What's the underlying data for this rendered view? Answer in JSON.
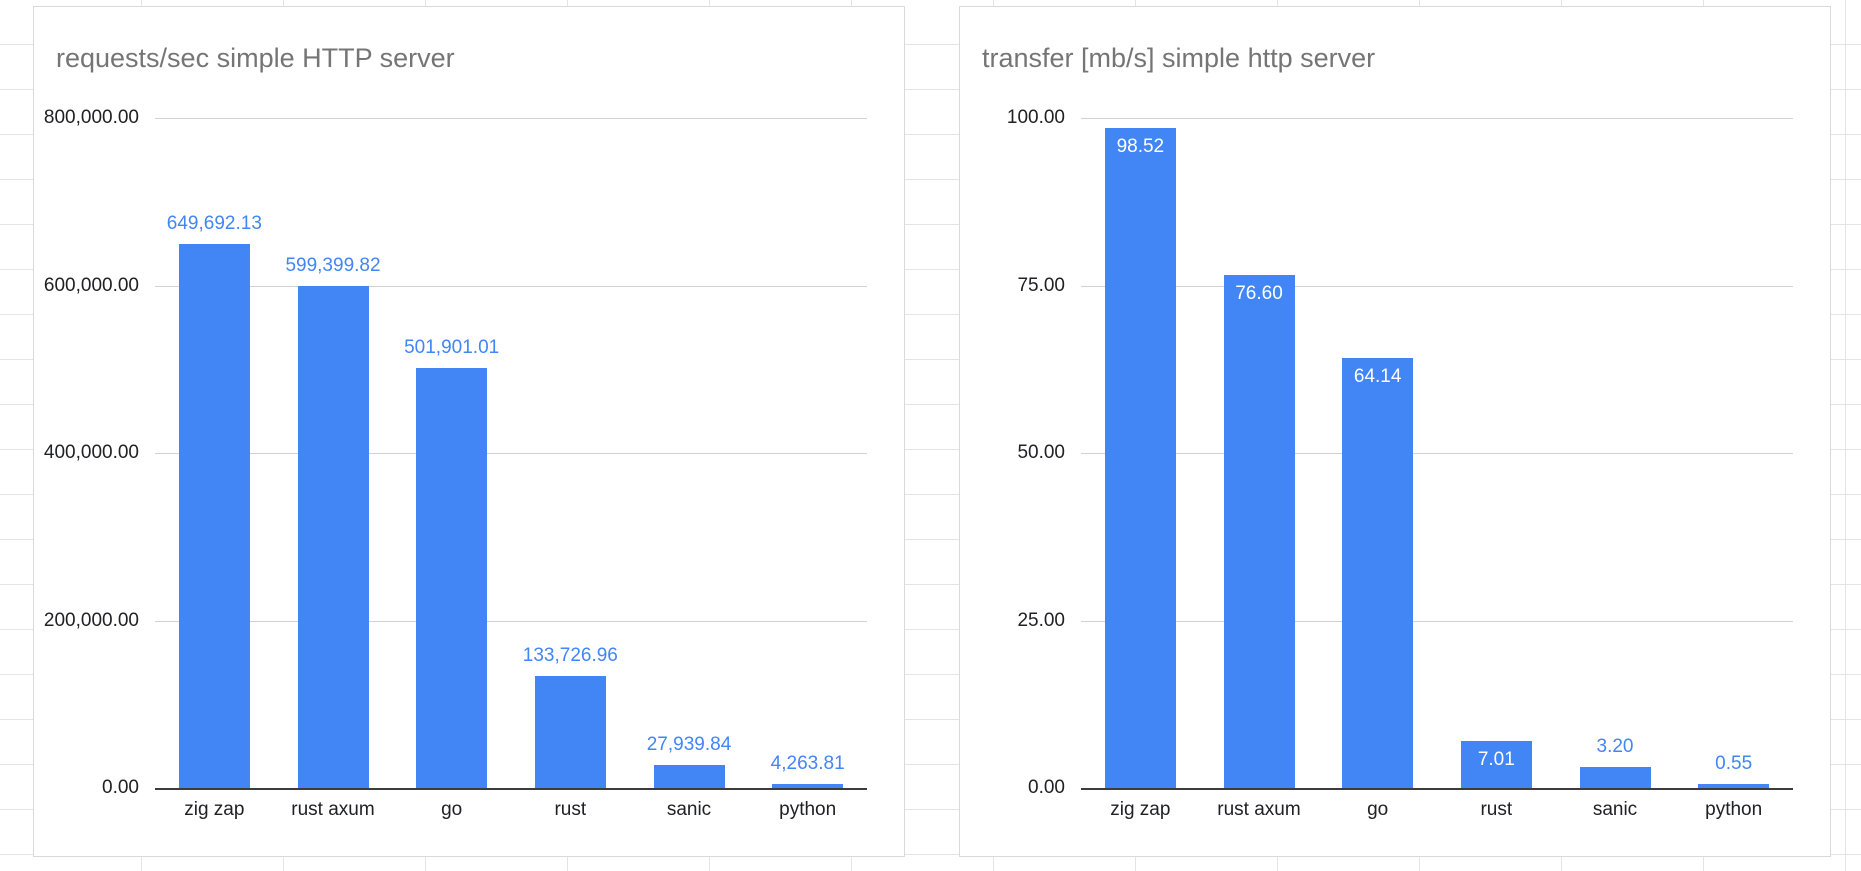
{
  "app": {
    "sheet_grid_color": "#e3e4e6",
    "card_border_color": "#d8d9db"
  },
  "chart_data": [
    {
      "type": "bar",
      "title": "requests/sec simple HTTP server",
      "categories": [
        "zig zap",
        "rust axum",
        "go",
        "rust",
        "sanic",
        "python"
      ],
      "values": [
        649692.13,
        599399.82,
        501901.01,
        133726.96,
        27939.84,
        4263.81
      ],
      "value_labels": [
        "649,692.13",
        "599,399.82",
        "501,901.01",
        "133,726.96",
        "27,939.84",
        "4,263.81"
      ],
      "label_positions": [
        "above",
        "above",
        "above",
        "above",
        "above",
        "above"
      ],
      "xlabel": "",
      "ylabel": "",
      "ylim": [
        0,
        800000
      ],
      "y_ticks": [
        {
          "value": 0,
          "label": "0.00"
        },
        {
          "value": 200000,
          "label": "200,000.00"
        },
        {
          "value": 400000,
          "label": "400,000.00"
        },
        {
          "value": 600000,
          "label": "600,000.00"
        },
        {
          "value": 800000,
          "label": "800,000.00"
        }
      ],
      "grid": true,
      "legend": "none",
      "bar_color": "#4285f4",
      "label_color": "#4285f4",
      "inside_label_color": "#ffffff",
      "title_color": "#757575"
    },
    {
      "type": "bar",
      "title": "transfer [mb/s] simple http server",
      "categories": [
        "zig zap",
        "rust axum",
        "go",
        "rust",
        "sanic",
        "python"
      ],
      "values": [
        98.52,
        76.6,
        64.14,
        7.01,
        3.2,
        0.55
      ],
      "value_labels": [
        "98.52",
        "76.60",
        "64.14",
        "7.01",
        "3.20",
        "0.55"
      ],
      "label_positions": [
        "inside",
        "inside",
        "inside",
        "inside",
        "above",
        "above"
      ],
      "xlabel": "",
      "ylabel": "",
      "ylim": [
        0,
        100
      ],
      "y_ticks": [
        {
          "value": 0,
          "label": "0.00"
        },
        {
          "value": 25,
          "label": "25.00"
        },
        {
          "value": 50,
          "label": "50.00"
        },
        {
          "value": 75,
          "label": "75.00"
        },
        {
          "value": 100,
          "label": "100.00"
        }
      ],
      "grid": true,
      "legend": "none",
      "bar_color": "#4285f4",
      "label_color": "#4285f4",
      "inside_label_color": "#ffffff",
      "title_color": "#757575"
    }
  ]
}
